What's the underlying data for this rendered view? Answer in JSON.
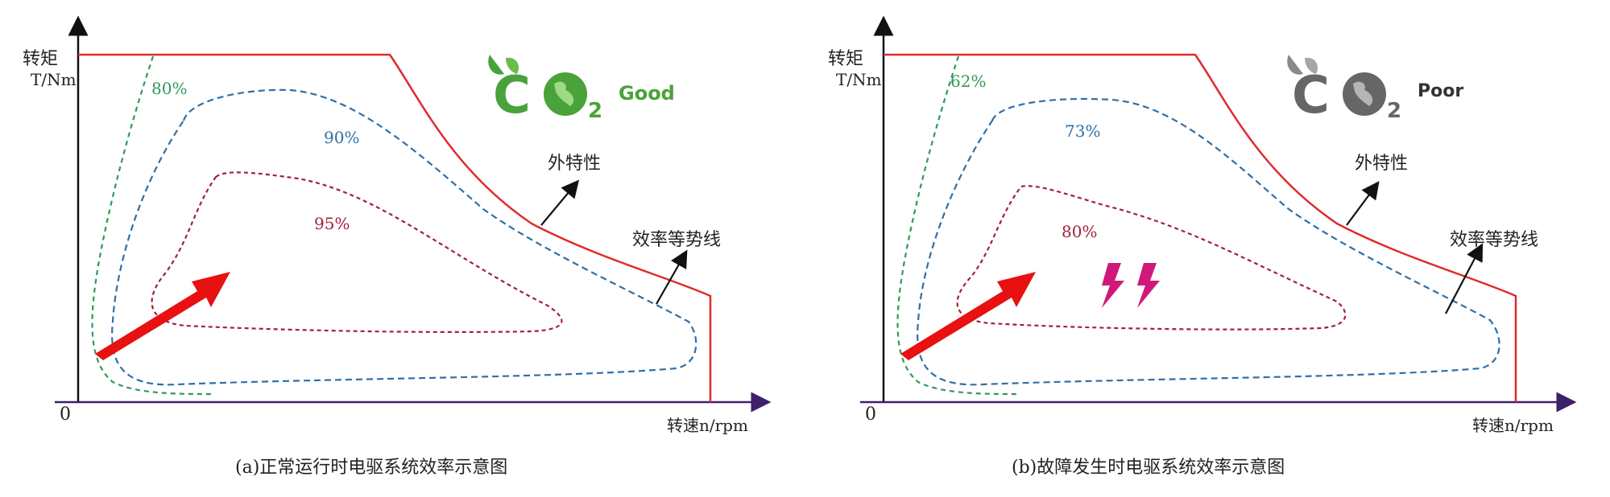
{
  "panels": [
    {
      "axis_y_label_1": "转矩",
      "axis_y_label_2": "T/Nm",
      "axis_x_label": "转速n/rpm",
      "origin_label": "0",
      "contour_outer_label": "80%",
      "contour_middle_label": "90%",
      "contour_inner_label": "95%",
      "ext_char_label": "外特性",
      "eff_contour_label": "效率等势线",
      "badge_text": "Good",
      "badge_state": "good",
      "caption": "(a)正常运行时电驱系统效率示意图"
    },
    {
      "axis_y_label_1": "转矩",
      "axis_y_label_2": "T/Nm",
      "axis_x_label": "转速n/rpm",
      "origin_label": "0",
      "contour_outer_label": "62%",
      "contour_middle_label": "73%",
      "contour_inner_label": "80%",
      "ext_char_label": "外特性",
      "eff_contour_label": "效率等势线",
      "badge_text": "Poor",
      "badge_state": "poor",
      "caption": "(b)故障发生时电驱系统效率示意图"
    }
  ],
  "colors": {
    "axis": "#111111",
    "x_axis": "#3d1f6b",
    "external_curve": "#e02b2b",
    "contour_outer": "#2e9a57",
    "contour_middle": "#2f6fa8",
    "contour_inner": "#a3203a",
    "arrow": "#e81010",
    "good_badge": "#4aa23a",
    "poor_badge": "#666666",
    "fault_icon": "#d0187a"
  },
  "icons": [
    "co2-good-icon",
    "co2-poor-icon",
    "lightning-fault-icon",
    "upward-arrow-icon"
  ]
}
